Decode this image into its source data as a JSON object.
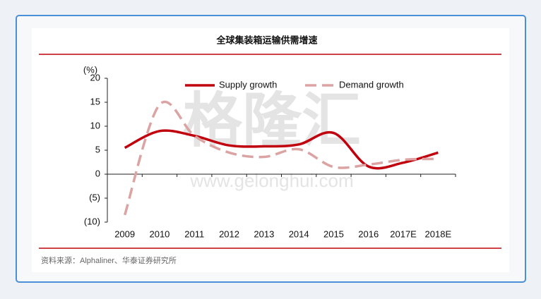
{
  "chart_data": {
    "type": "line",
    "title": "全球集装箱运输供需增速",
    "y_label": "(%)",
    "source": "资料来源：Alphaliner、华泰证券研究所",
    "watermark": "格隆汇",
    "watermark_url": "www.gelonghui.com",
    "categories": [
      "2009",
      "2010",
      "2011",
      "2012",
      "2013",
      "2014",
      "2015",
      "2016",
      "2017E",
      "2018E"
    ],
    "series": [
      {
        "name": "Supply growth",
        "color": "#c0000c",
        "dashed": false,
        "values": [
          5.5,
          9,
          8,
          6,
          5.8,
          6.2,
          8.6,
          1.6,
          2.4,
          4.5
        ]
      },
      {
        "name": "Demand growth",
        "color": "#dca3a3",
        "dashed": true,
        "values": [
          -8.5,
          14.5,
          8,
          4.5,
          3.6,
          5.2,
          1.5,
          2,
          3,
          3.2
        ]
      }
    ],
    "ylim": [
      -10,
      20
    ],
    "yticks": [
      {
        "value": -10,
        "label": "(10)"
      },
      {
        "value": -5,
        "label": "(5)"
      },
      0,
      5,
      10,
      15,
      20
    ],
    "grid": false,
    "legend": "top"
  }
}
